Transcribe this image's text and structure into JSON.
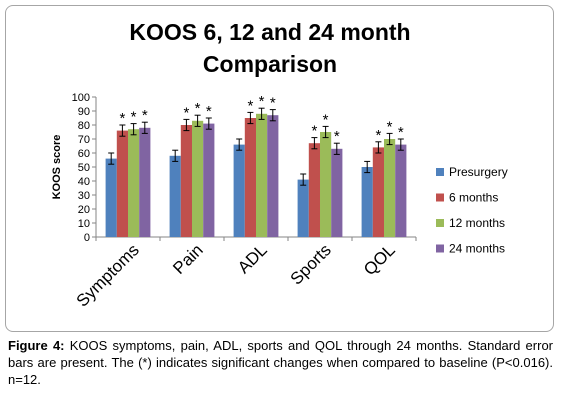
{
  "chart_data": {
    "type": "bar",
    "title_lines": [
      "KOOS 6, 12 and 24 month",
      "Comparison"
    ],
    "xlabel": "",
    "ylabel": "KOOS score",
    "ylim": [
      0,
      100
    ],
    "ytick_step": 10,
    "grid": false,
    "legend_position": "right",
    "categories": [
      "Symptoms",
      "Pain",
      "ADL",
      "Sports",
      "QOL"
    ],
    "series": [
      {
        "name": "Presurgery",
        "color": "#4f81bd",
        "values": [
          56,
          58,
          66,
          41,
          50
        ],
        "errors": [
          4,
          4,
          4,
          4,
          4
        ]
      },
      {
        "name": "6 months",
        "color": "#c0504d",
        "values": [
          76,
          80,
          85,
          67,
          64
        ],
        "errors": [
          4,
          4,
          4,
          4,
          4
        ]
      },
      {
        "name": "12 months",
        "color": "#9bbb59",
        "values": [
          77,
          83,
          88,
          75,
          70
        ],
        "errors": [
          4,
          4,
          4,
          4,
          4
        ]
      },
      {
        "name": "24 months",
        "color": "#8064a2",
        "values": [
          78,
          81,
          87,
          63,
          66
        ],
        "errors": [
          4,
          4,
          4,
          4,
          4
        ]
      }
    ],
    "annotation_symbol": "*"
  },
  "caption": {
    "label": "Figure 4:",
    "text": " KOOS symptoms, pain, ADL, sports and QOL through 24 months. Standard error bars are present. The (*) indicates significant changes when compared to baseline (P<0.016). n=12."
  }
}
